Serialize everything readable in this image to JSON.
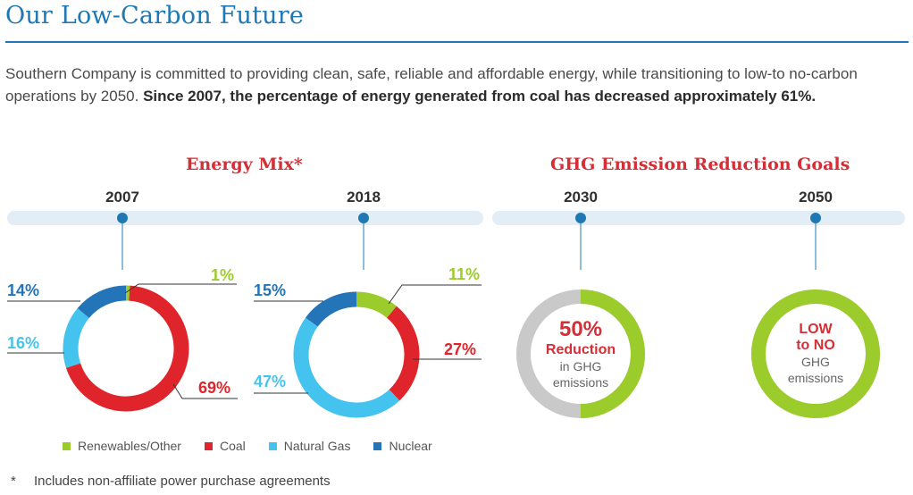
{
  "header": {
    "title": "Our Low-Carbon Future",
    "intro_plain": "Southern Company is committed to providing clean, safe, reliable and affordable energy, while transitioning to low-to no-carbon operations by 2050. ",
    "intro_bold": "Since 2007, the percentage of energy generated from coal has decreased approximately 61%."
  },
  "sections": {
    "energy_mix_title": "Energy Mix*",
    "ghg_title": "GHG Emission Reduction Goals"
  },
  "timeline_years": [
    "2007",
    "2018",
    "2030",
    "2050"
  ],
  "colors": {
    "renewables": "#9ccc2c",
    "coal": "#e0242c",
    "natural_gas": "#45c3ef",
    "nuclear": "#2474b8",
    "gray": "#c9c9c9",
    "timeline": "#e3edf5",
    "accent_blue": "#1f78b4",
    "red_text": "#d42e36"
  },
  "chart_data": [
    {
      "type": "pie",
      "title": "2007",
      "categories": [
        "Renewables/Other",
        "Coal",
        "Natural Gas",
        "Nuclear"
      ],
      "values": [
        1,
        69,
        16,
        14
      ],
      "labels": [
        "1%",
        "69%",
        "16%",
        "14%"
      ]
    },
    {
      "type": "pie",
      "title": "2018",
      "categories": [
        "Renewables/Other",
        "Coal",
        "Natural Gas",
        "Nuclear"
      ],
      "values": [
        11,
        27,
        47,
        15
      ],
      "labels": [
        "11%",
        "27%",
        "47%",
        "15%"
      ]
    }
  ],
  "goals": [
    {
      "year": "2030",
      "progress": 0.5,
      "big_text": "50%",
      "line2": "Reduction",
      "line3": "in GHG",
      "line4": "emissions"
    },
    {
      "year": "2050",
      "progress": 1.0,
      "big_text": "LOW",
      "line2": "to NO",
      "line3": "GHG",
      "line4": "emissions"
    }
  ],
  "legend": [
    {
      "label": "Renewables/Other",
      "color": "#9ccc2c"
    },
    {
      "label": "Coal",
      "color": "#e0242c"
    },
    {
      "label": "Natural Gas",
      "color": "#45c3ef"
    },
    {
      "label": "Nuclear",
      "color": "#2474b8"
    }
  ],
  "footnote": {
    "star": "*",
    "text": "Includes non-affiliate power purchase agreements"
  }
}
